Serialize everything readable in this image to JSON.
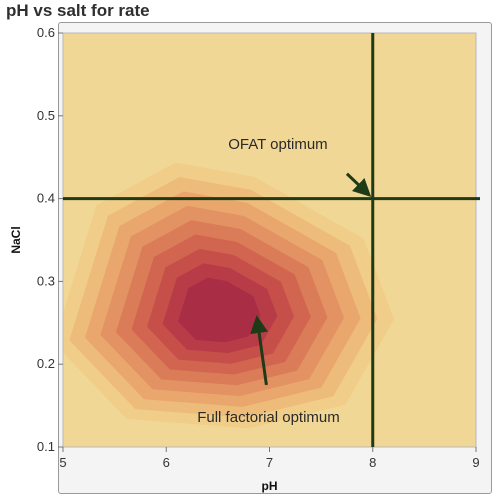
{
  "chart_data": {
    "type": "contour",
    "title": "pH vs salt for rate",
    "xlabel": "pH",
    "ylabel": "NaCl",
    "xlim": [
      5,
      9
    ],
    "ylim": [
      0.1,
      0.6
    ],
    "xticks": [
      5,
      6,
      7,
      8,
      9
    ],
    "yticks": [
      0.1,
      0.2,
      0.3,
      0.4,
      0.5,
      0.6
    ],
    "x_tick_labels": [
      "5",
      "6",
      "7",
      "8",
      "9"
    ],
    "y_tick_labels": [
      "0.1",
      "0.2",
      "0.3",
      "0.4",
      "0.5",
      "0.6"
    ],
    "response_peak": {
      "ph": 6.5,
      "nacl": 0.26
    },
    "contour_level_colors": [
      "#f1d795",
      "#f0cd88",
      "#eebc7a",
      "#e9a76e",
      "#e39263",
      "#db7c59",
      "#d1654f",
      "#c64f4a",
      "#b73c47",
      "#a92d45"
    ],
    "reference_lines": [
      {
        "orientation": "vertical",
        "x": 8.0
      },
      {
        "orientation": "horizontal",
        "y": 0.4
      }
    ],
    "annotations": [
      {
        "text": "OFAT optimum",
        "text_at": {
          "ph": 6.6,
          "nacl": 0.46
        },
        "arrow_from": {
          "ph": 7.75,
          "nacl": 0.43
        },
        "arrow_to": {
          "ph": 7.96,
          "nacl": 0.405
        }
      },
      {
        "text": "Full factorial optimum",
        "text_at": {
          "ph": 6.3,
          "nacl": 0.13
        },
        "arrow_from": {
          "ph": 6.97,
          "nacl": 0.175
        },
        "arrow_to": {
          "ph": 6.88,
          "nacl": 0.255
        }
      }
    ],
    "colors": {
      "reference_line": "#1e3a17",
      "frame": "#9a9a9a"
    }
  }
}
